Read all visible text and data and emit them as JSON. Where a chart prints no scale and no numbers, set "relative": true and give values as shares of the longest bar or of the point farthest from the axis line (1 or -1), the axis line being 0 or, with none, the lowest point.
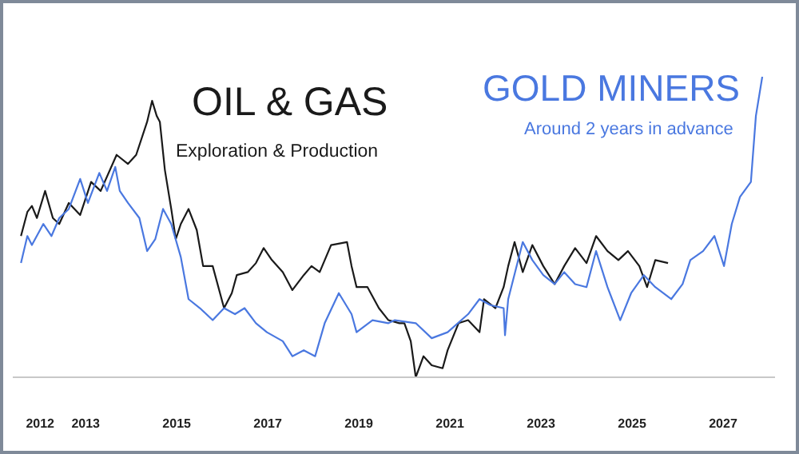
{
  "chart_data": {
    "type": "line",
    "relative": true,
    "xlim": [
      2011.4,
      2028.14
    ],
    "xticks": [
      2012,
      2013,
      2015,
      2017,
      2019,
      2021,
      2023,
      2025,
      2027
    ],
    "grid": false,
    "legend": false,
    "marker": "none",
    "line_style": "solid",
    "annotations": [
      "Exploration & Production",
      "Around 2 years in advance"
    ],
    "series": [
      {
        "name": "OIL & GAS",
        "color": "#1a1a1a",
        "x": [
          2011.58,
          2011.72,
          2011.82,
          2011.93,
          2012.11,
          2012.28,
          2012.42,
          2012.63,
          2012.88,
          2013.12,
          2013.33,
          2013.68,
          2013.93,
          2014.11,
          2014.35,
          2014.46,
          2014.56,
          2014.63,
          2014.74,
          2014.88,
          2014.98,
          2015.09,
          2015.26,
          2015.44,
          2015.58,
          2015.79,
          2016.04,
          2016.21,
          2016.32,
          2016.56,
          2016.74,
          2016.91,
          2017.09,
          2017.33,
          2017.54,
          2017.79,
          2017.96,
          2018.14,
          2018.39,
          2018.74,
          2018.84,
          2018.95,
          2019.19,
          2019.44,
          2019.65,
          2019.89,
          2020.0,
          2020.14,
          2020.25,
          2020.42,
          2020.6,
          2020.84,
          2020.95,
          2021.19,
          2021.4,
          2021.65,
          2021.75,
          2022.0,
          2022.18,
          2022.28,
          2022.42,
          2022.6,
          2022.81,
          2023.05,
          2023.3,
          2023.51,
          2023.75,
          2024.0,
          2024.21,
          2024.46,
          2024.7,
          2024.91,
          2025.16,
          2025.33,
          2025.51,
          2025.79
        ],
        "values": [
          0.47,
          0.55,
          0.57,
          0.53,
          0.62,
          0.53,
          0.51,
          0.58,
          0.54,
          0.65,
          0.62,
          0.74,
          0.71,
          0.74,
          0.85,
          0.92,
          0.87,
          0.85,
          0.69,
          0.56,
          0.46,
          0.51,
          0.56,
          0.49,
          0.37,
          0.37,
          0.23,
          0.28,
          0.34,
          0.35,
          0.38,
          0.43,
          0.39,
          0.35,
          0.29,
          0.34,
          0.37,
          0.35,
          0.44,
          0.45,
          0.37,
          0.3,
          0.3,
          0.23,
          0.19,
          0.18,
          0.18,
          0.12,
          0,
          0.07,
          0.04,
          0.03,
          0.09,
          0.18,
          0.19,
          0.15,
          0.26,
          0.23,
          0.3,
          0.37,
          0.45,
          0.35,
          0.44,
          0.37,
          0.31,
          0.37,
          0.43,
          0.38,
          0.47,
          0.42,
          0.39,
          0.42,
          0.37,
          0.3,
          0.39,
          0.38
        ]
      },
      {
        "name": "GOLD MINERS",
        "color": "#4a78e0",
        "x": [
          2011.58,
          2011.72,
          2011.82,
          2012.07,
          2012.25,
          2012.42,
          2012.63,
          2012.88,
          2013.05,
          2013.3,
          2013.47,
          2013.65,
          2013.75,
          2013.93,
          2014.18,
          2014.35,
          2014.53,
          2014.7,
          2014.88,
          2015.09,
          2015.26,
          2015.51,
          2015.79,
          2016.04,
          2016.28,
          2016.49,
          2016.74,
          2016.98,
          2017.33,
          2017.54,
          2017.79,
          2018.04,
          2018.25,
          2018.56,
          2018.84,
          2018.95,
          2019.3,
          2019.65,
          2019.79,
          2020.25,
          2020.6,
          2020.95,
          2021.4,
          2021.65,
          2021.89,
          2022.18,
          2022.21,
          2022.28,
          2022.6,
          2022.81,
          2023.05,
          2023.3,
          2023.51,
          2023.75,
          2024.0,
          2024.21,
          2024.46,
          2024.74,
          2024.98,
          2025.26,
          2025.51,
          2025.86,
          2026.11,
          2026.28,
          2026.56,
          2026.81,
          2027.02,
          2027.19,
          2027.37,
          2027.61,
          2027.72,
          2027.86
        ],
        "values": [
          0.38,
          0.47,
          0.44,
          0.51,
          0.47,
          0.53,
          0.56,
          0.66,
          0.58,
          0.68,
          0.62,
          0.7,
          0.62,
          0.58,
          0.53,
          0.42,
          0.46,
          0.56,
          0.51,
          0.4,
          0.26,
          0.23,
          0.19,
          0.23,
          0.21,
          0.23,
          0.18,
          0.15,
          0.12,
          0.07,
          0.09,
          0.07,
          0.18,
          0.28,
          0.21,
          0.15,
          0.19,
          0.18,
          0.19,
          0.18,
          0.13,
          0.15,
          0.21,
          0.26,
          0.24,
          0.23,
          0.14,
          0.26,
          0.45,
          0.39,
          0.34,
          0.31,
          0.35,
          0.31,
          0.3,
          0.42,
          0.3,
          0.19,
          0.28,
          0.34,
          0.3,
          0.26,
          0.31,
          0.39,
          0.42,
          0.47,
          0.37,
          0.51,
          0.6,
          0.65,
          0.87,
          1
        ]
      }
    ]
  }
}
